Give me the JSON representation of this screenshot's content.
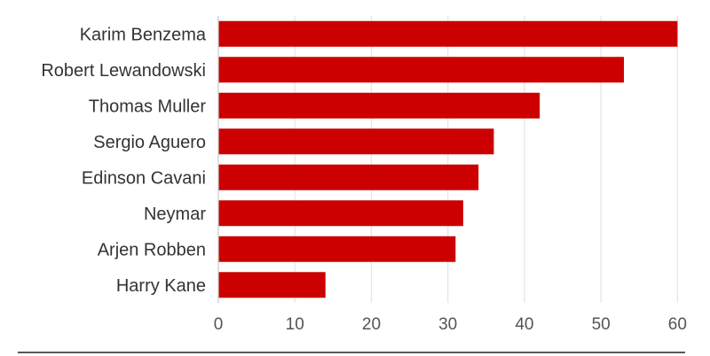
{
  "chart_data": {
    "type": "bar",
    "orientation": "horizontal",
    "categories": [
      "Karim Benzema",
      "Robert Lewandowski",
      "Thomas Muller",
      "Sergio Aguero",
      "Edinson Cavani",
      "Neymar",
      "Arjen Robben",
      "Harry Kane"
    ],
    "values": [
      60,
      53,
      42,
      36,
      34,
      32,
      31,
      14
    ],
    "xlim": [
      0,
      61
    ],
    "xticks": [
      0,
      10,
      20,
      30,
      40,
      50,
      60
    ],
    "xtick_labels": [
      "0",
      "10",
      "20",
      "30",
      "40",
      "50",
      "60"
    ],
    "grid": true,
    "bar_color": "#cc0000",
    "title": "",
    "xlabel": "",
    "ylabel": ""
  }
}
